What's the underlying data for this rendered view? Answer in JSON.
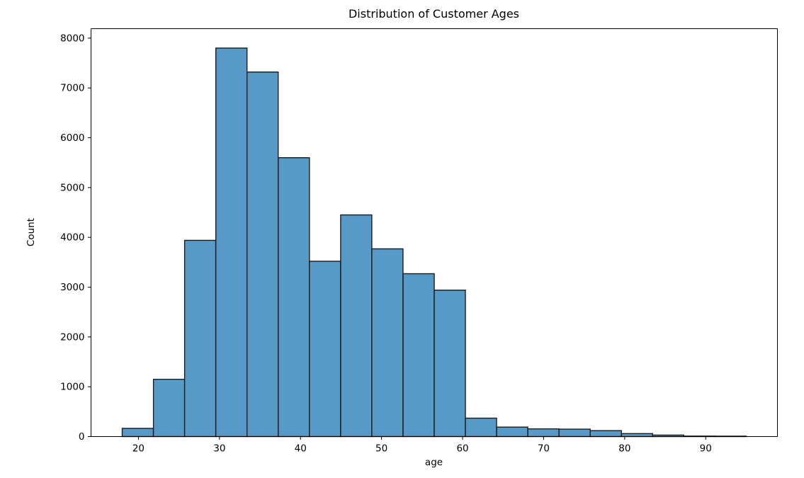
{
  "chart_data": {
    "type": "histogram",
    "title": "Distribution of Customer Ages",
    "xlabel": "age",
    "ylabel": "Count",
    "bin_edges": [
      18,
      21.85,
      25.7,
      29.55,
      33.4,
      37.25,
      41.1,
      44.95,
      48.8,
      52.65,
      56.5,
      60.35,
      64.2,
      68.05,
      71.9,
      75.75,
      79.6,
      83.45,
      87.3,
      91.15,
      95
    ],
    "counts": [
      165,
      1150,
      3940,
      7800,
      7320,
      5600,
      3520,
      4450,
      3770,
      3270,
      2940,
      370,
      190,
      155,
      150,
      120,
      60,
      30,
      10,
      8
    ],
    "xlim": [
      14.15,
      98.85
    ],
    "ylim": [
      0,
      8190
    ],
    "xticks": [
      20,
      30,
      40,
      50,
      60,
      70,
      80,
      90
    ],
    "yticks": [
      0,
      1000,
      2000,
      3000,
      4000,
      5000,
      6000,
      7000,
      8000
    ],
    "grid": false,
    "legend_visible": false,
    "colors": {
      "bar_fill": "#5799C7",
      "bar_edge": "#1c1c1c",
      "axis": "#000000",
      "text": "#000000",
      "background": "#ffffff"
    }
  }
}
